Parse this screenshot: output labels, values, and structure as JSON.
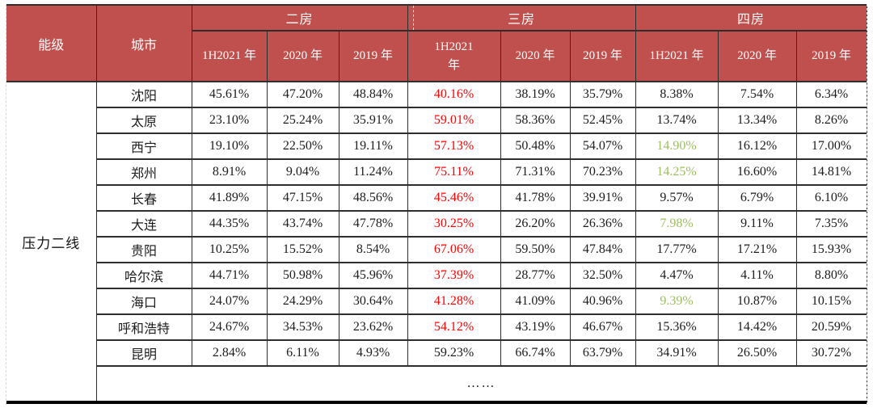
{
  "colors": {
    "header_bg": "#C0504D",
    "header_text": "#FFFFFF",
    "value_red": "#FF0000",
    "value_green": "#9CBF5F"
  },
  "table": {
    "corner_header": "能级",
    "city_header": "城市",
    "groups": [
      {
        "label": "二房",
        "sub_headers": [
          "1H2021 年",
          "2020 年",
          "2019 年"
        ]
      },
      {
        "label": "三房",
        "sub_headers": [
          "1H2021\n年",
          "2020 年",
          "2019 年"
        ]
      },
      {
        "label": "四房",
        "sub_headers": [
          "1H2021 年",
          "2020 年",
          "2019 年"
        ]
      }
    ],
    "tier_label": "压力二线",
    "ellipsis_row": "……",
    "rows": [
      {
        "city": "沈阳",
        "values": [
          "45.61%",
          "47.20%",
          "48.84%",
          "40.16%",
          "38.19%",
          "35.79%",
          "8.38%",
          "7.54%",
          "6.34%"
        ],
        "styles": [
          "",
          "",
          "",
          "red",
          "",
          "",
          "",
          "",
          ""
        ]
      },
      {
        "city": "太原",
        "values": [
          "23.10%",
          "25.24%",
          "35.91%",
          "59.01%",
          "58.36%",
          "52.45%",
          "13.74%",
          "13.34%",
          "8.26%"
        ],
        "styles": [
          "",
          "",
          "",
          "red",
          "",
          "",
          "",
          "",
          ""
        ]
      },
      {
        "city": "西宁",
        "values": [
          "19.10%",
          "22.50%",
          "19.11%",
          "57.13%",
          "50.48%",
          "54.07%",
          "14.90%",
          "16.12%",
          "17.00%"
        ],
        "styles": [
          "",
          "",
          "",
          "red",
          "",
          "",
          "green",
          "",
          ""
        ]
      },
      {
        "city": "郑州",
        "values": [
          "8.91%",
          "9.04%",
          "11.24%",
          "75.11%",
          "71.31%",
          "70.23%",
          "14.25%",
          "16.60%",
          "14.81%"
        ],
        "styles": [
          "",
          "",
          "",
          "red",
          "",
          "",
          "green",
          "",
          ""
        ]
      },
      {
        "city": "长春",
        "values": [
          "41.89%",
          "47.15%",
          "48.56%",
          "45.46%",
          "41.78%",
          "39.91%",
          "9.57%",
          "6.79%",
          "6.10%"
        ],
        "styles": [
          "",
          "",
          "",
          "red",
          "",
          "",
          "",
          "",
          ""
        ]
      },
      {
        "city": "大连",
        "values": [
          "44.35%",
          "43.74%",
          "47.78%",
          "30.25%",
          "26.20%",
          "26.36%",
          "7.98%",
          "9.11%",
          "7.35%"
        ],
        "styles": [
          "",
          "",
          "",
          "red",
          "",
          "",
          "green",
          "",
          ""
        ]
      },
      {
        "city": "贵阳",
        "values": [
          "10.25%",
          "15.52%",
          "8.54%",
          "67.06%",
          "59.50%",
          "47.84%",
          "17.77%",
          "17.21%",
          "15.93%"
        ],
        "styles": [
          "",
          "",
          "",
          "red",
          "",
          "",
          "",
          "",
          ""
        ]
      },
      {
        "city": "哈尔滨",
        "values": [
          "44.71%",
          "50.98%",
          "45.96%",
          "37.39%",
          "28.77%",
          "32.50%",
          "4.47%",
          "4.11%",
          "8.80%"
        ],
        "styles": [
          "",
          "",
          "",
          "red",
          "",
          "",
          "",
          "",
          ""
        ]
      },
      {
        "city": "海口",
        "values": [
          "24.07%",
          "24.29%",
          "30.64%",
          "41.28%",
          "41.09%",
          "40.96%",
          "9.39%",
          "10.87%",
          "10.15%"
        ],
        "styles": [
          "",
          "",
          "",
          "red",
          "",
          "",
          "green",
          "",
          ""
        ]
      },
      {
        "city": "呼和浩特",
        "values": [
          "24.67%",
          "34.53%",
          "23.62%",
          "54.12%",
          "43.19%",
          "46.67%",
          "15.36%",
          "14.42%",
          "20.59%"
        ],
        "styles": [
          "",
          "",
          "",
          "red",
          "",
          "",
          "",
          "",
          ""
        ]
      },
      {
        "city": "昆明",
        "values": [
          "2.84%",
          "6.11%",
          "4.93%",
          "59.23%",
          "66.74%",
          "63.79%",
          "34.91%",
          "26.50%",
          "30.72%"
        ],
        "styles": [
          "",
          "",
          "",
          "",
          "",
          "",
          "",
          "",
          ""
        ]
      }
    ]
  }
}
